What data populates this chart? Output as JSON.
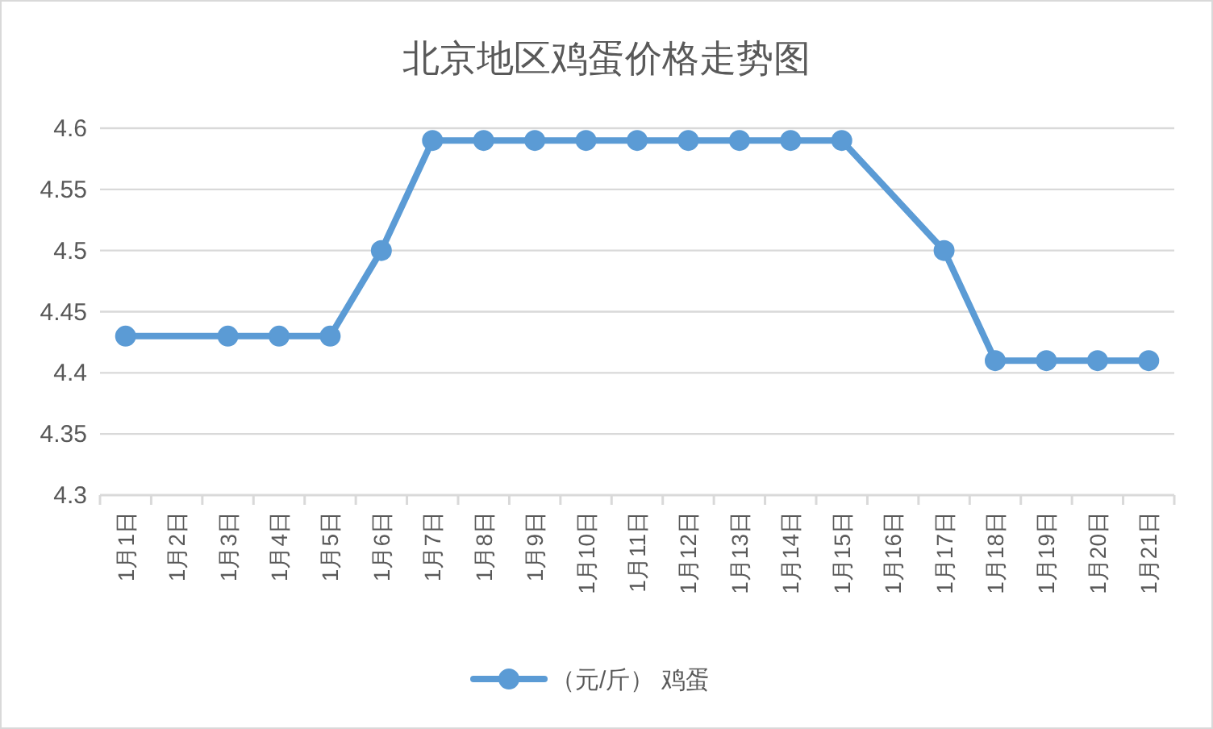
{
  "chart_data": {
    "type": "line",
    "title": "北京地区鸡蛋价格走势图",
    "categories": [
      "1月1日",
      "1月2日",
      "1月3日",
      "1月4日",
      "1月5日",
      "1月6日",
      "1月7日",
      "1月8日",
      "1月9日",
      "1月10日",
      "1月11日",
      "1月12日",
      "1月13日",
      "1月14日",
      "1月15日",
      "1月16日",
      "1月17日",
      "1月18日",
      "1月19日",
      "1月20日",
      "1月21日"
    ],
    "series": [
      {
        "name": "（元/斤） 鸡蛋",
        "color": "#5b9bd5",
        "values": [
          4.43,
          null,
          4.43,
          4.43,
          4.43,
          4.5,
          4.59,
          4.59,
          4.59,
          4.59,
          4.59,
          4.59,
          4.59,
          4.59,
          4.59,
          null,
          4.5,
          4.41,
          4.41,
          4.41,
          4.41
        ]
      }
    ],
    "ylim": [
      4.3,
      4.6
    ],
    "yticks": [
      4.3,
      4.35,
      4.4,
      4.45,
      4.5,
      4.55,
      4.6
    ],
    "grid": "y",
    "legend": "bottom",
    "marker": "circle",
    "line_style": "solid"
  }
}
